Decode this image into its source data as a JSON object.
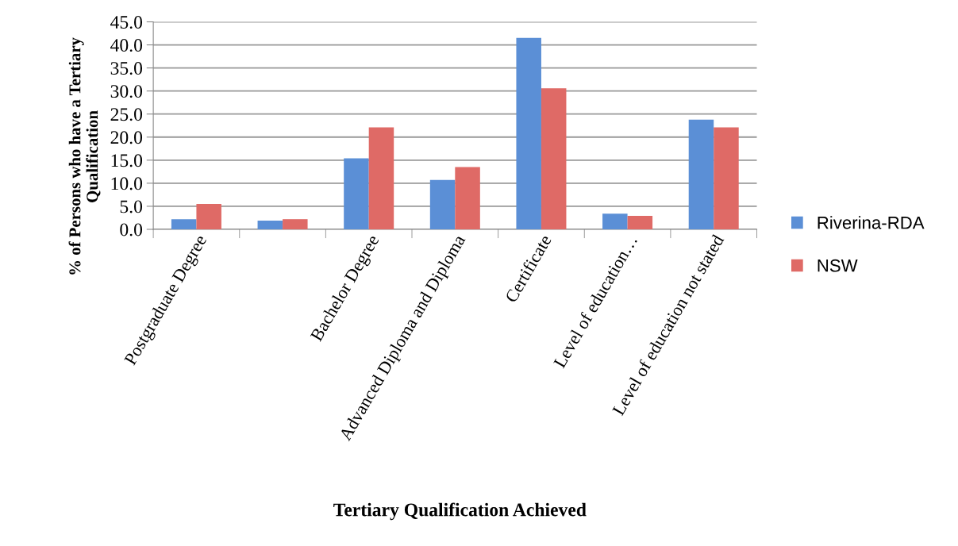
{
  "chart_data": {
    "type": "bar",
    "xlabel": "Tertiary Qualification Achieved",
    "ylabel": "% of Persons who have a Tertiary\nQualification",
    "categories": [
      "Postgraduate Degree",
      null,
      "Bachelor Degree",
      "Advanced Diploma and Diploma",
      "Certificate",
      "Level of education…",
      "Level of education not stated"
    ],
    "series": [
      {
        "name": "Riverina-RDA",
        "color": "#5b8fd6",
        "values": [
          2.2,
          1.9,
          15.4,
          10.7,
          41.5,
          3.4,
          23.8
        ]
      },
      {
        "name": "NSW",
        "color": "#df6a66",
        "values": [
          5.5,
          2.2,
          22.1,
          13.5,
          30.6,
          2.9,
          22.1
        ]
      }
    ],
    "ylim": [
      0,
      45
    ],
    "yticks": [
      {
        "value": 0,
        "label": "0.0"
      },
      {
        "value": 5,
        "label": "5.0"
      },
      {
        "value": 10,
        "label": "10.0"
      },
      {
        "value": 15,
        "label": "15.0"
      },
      {
        "value": 20,
        "label": "20.0"
      },
      {
        "value": 25,
        "label": "25.0"
      },
      {
        "value": 30,
        "label": "30.0"
      },
      {
        "value": 35,
        "label": "35.0"
      },
      {
        "value": 40,
        "label": "40.0"
      },
      {
        "value": 45,
        "label": "45.0"
      }
    ],
    "grid": "y",
    "legend": "right"
  }
}
